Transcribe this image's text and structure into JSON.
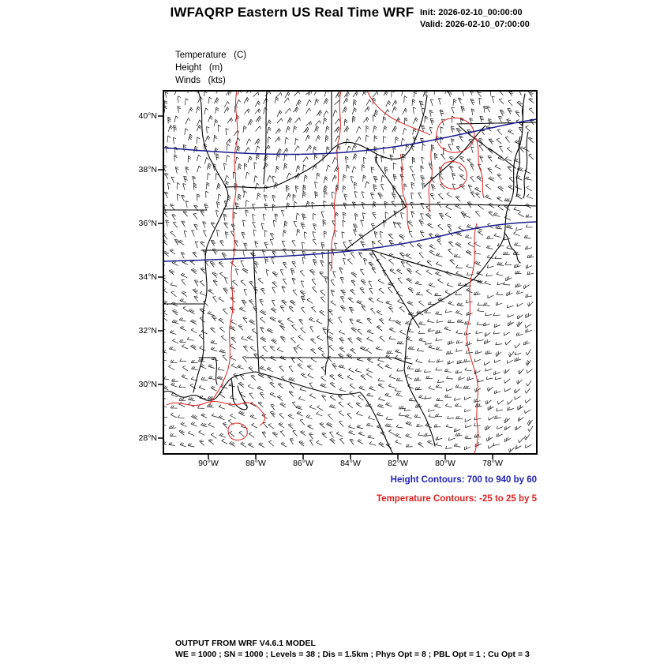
{
  "header": {
    "title": "IWFAQRP Eastern US Real Time WRF",
    "init_label": "Init: 2026-02-10_00:00:00",
    "valid_label": "Valid: 2026-02-10_07:00:00"
  },
  "fields": {
    "line1": "Temperature   (C)",
    "line2": "Height   (m)",
    "line3": "Winds   (kts)"
  },
  "map": {
    "lat_ticks": [
      "40°N",
      "38°N",
      "36°N",
      "34°N",
      "32°N",
      "30°N",
      "28°N"
    ],
    "lon_ticks": [
      "90°W",
      "88°W",
      "86°W",
      "84°W",
      "82°W",
      "80°W",
      "78°W"
    ]
  },
  "legend": {
    "height_contours": "Height Contours: 700 to 940 by 60",
    "temperature_contours": "Temperature Contours: -25 to 25 by 5"
  },
  "footer": {
    "line1": "OUTPUT FROM WRF V4.6.1 MODEL",
    "line2": "WE = 1000 ; SN = 1000 ; Levels = 38 ; Dis = 1.5km ; Phys Opt = 8 ; PBL Opt = 1 ; Cu Opt = 3"
  },
  "colors": {
    "height_legend": "#2323bb",
    "temperature_legend": "#dd2222",
    "height_contour_line": "#1a1a8e",
    "temperature_contour_line": "#dd2222",
    "boundaries": "#000000"
  },
  "chart_data": {
    "type": "map",
    "region": "Eastern US",
    "title": "IWFAQRP Eastern US Real Time WRF",
    "fields_plotted": [
      "Temperature (C)",
      "Height (m)",
      "Winds (kts)"
    ],
    "init_time": "2026-02-10_00:00:00",
    "valid_time": "2026-02-10_07:00:00",
    "lat_ticks_deg_n": [
      40,
      38,
      36,
      34,
      32,
      30,
      28
    ],
    "lon_ticks_deg_w": [
      90,
      88,
      86,
      84,
      82,
      80,
      78
    ],
    "height_contours": {
      "min": 700,
      "max": 940,
      "interval": 60,
      "color": "#2323bb"
    },
    "temperature_contours": {
      "min": -25,
      "max": 25,
      "interval": 5,
      "color": "#dd2222"
    },
    "model": "WRF V4.6.1",
    "grid_config": {
      "WE": 1000,
      "SN": 1000,
      "Levels": 38,
      "Dis_km": 1.5,
      "Phys_Opt": 8,
      "PBL_Opt": 1,
      "Cu_Opt": 3
    }
  }
}
